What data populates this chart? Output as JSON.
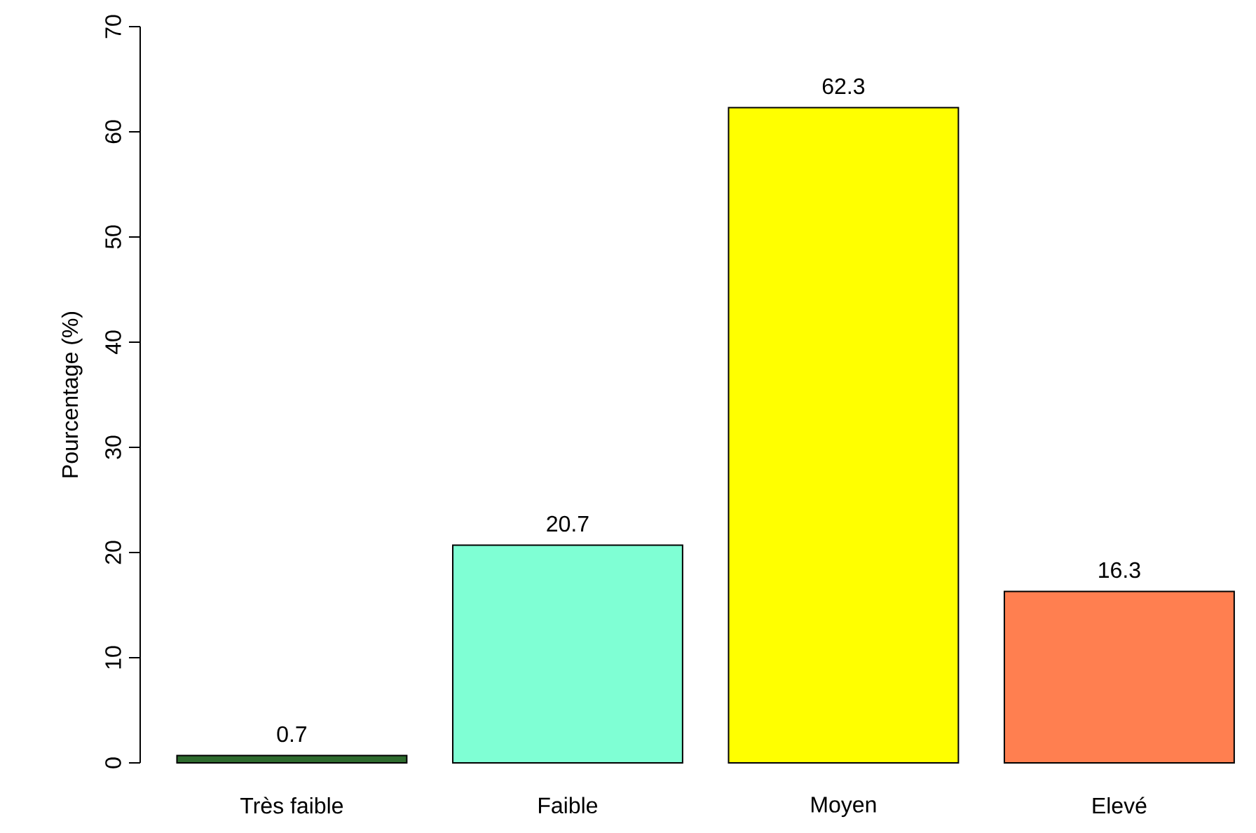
{
  "chart_data": {
    "type": "bar",
    "ylabel": "Pourcentage (%)",
    "categories": [
      "Très faible",
      "Faible",
      "Moyen",
      "Elevé"
    ],
    "values": [
      0.7,
      20.7,
      62.3,
      16.3
    ],
    "value_labels": [
      "0.7",
      "20.7",
      "62.3",
      "16.3"
    ],
    "colors": [
      "#2e6b2e",
      "#7fffd4",
      "#ffff00",
      "#ff7f50"
    ],
    "ylim": [
      0,
      70
    ],
    "yticks": [
      0,
      10,
      20,
      30,
      40,
      50,
      60,
      70
    ],
    "grid": false
  }
}
